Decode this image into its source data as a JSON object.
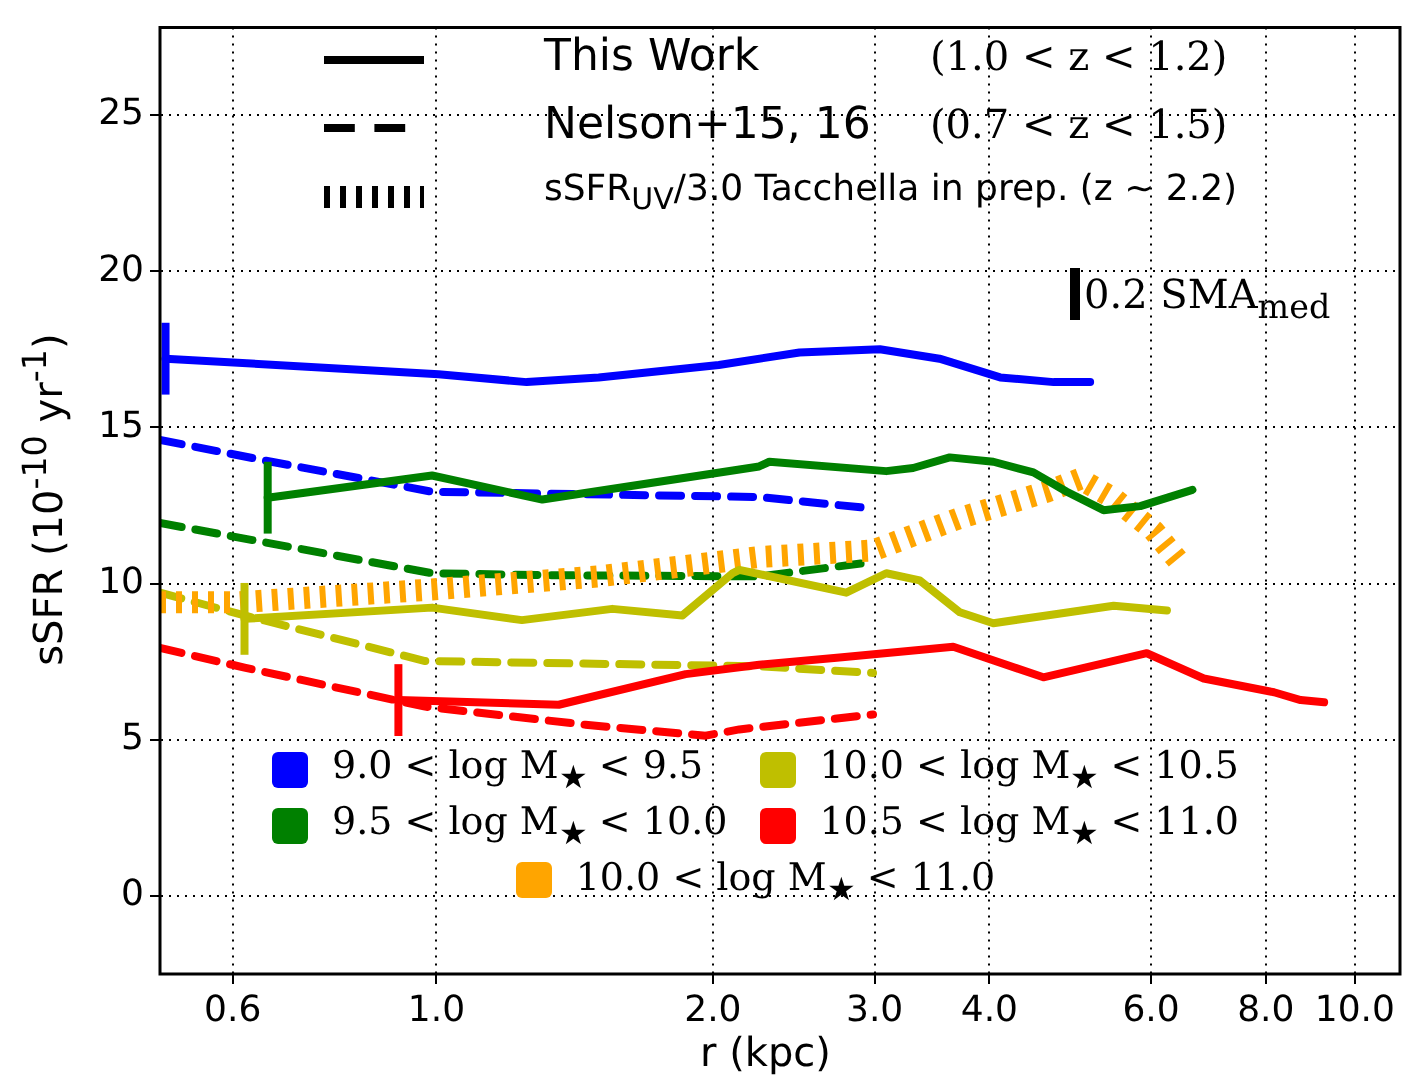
{
  "chart_data": {
    "type": "line",
    "xlabel": "r (kpc)",
    "ylabel": "sSFR (10$^{-10}$ yr$^{-1}$)",
    "log": "x",
    "grid": true,
    "legend": "bottom",
    "xlim": [
      0.5,
      11.2
    ],
    "ylim": [
      -2.5,
      27.8
    ],
    "xticks": [
      0.6,
      {
        "value": 1,
        "label": "1.0"
      },
      {
        "value": 2,
        "label": "2.0"
      },
      {
        "value": 3,
        "label": "3.0"
      },
      {
        "value": 4,
        "label": "4.0"
      },
      {
        "value": 6,
        "label": "6.0"
      },
      {
        "value": 8,
        "label": "8.0"
      },
      {
        "value": 10,
        "label": "10.0"
      }
    ],
    "yticks": [
      0,
      5,
      10,
      15,
      20,
      25
    ],
    "annotations": [
      "This Work",
      "(1.0 < z < 1.2)",
      "Nelson+15, 16",
      "(0.7 < z < 1.5)",
      "sSFR$_{UV}$/3.0 Tacchella in prep. (z ∼ 2.2)",
      "0.2 SMA$_{med}$"
    ],
    "series": [
      {
        "name": "9.0 < log M$_{★}$ < 9.5",
        "color": "#0000ff",
        "line_style": "solid",
        "x": [
          0.507,
          1.005,
          1.254,
          1.502,
          2.03,
          2.485,
          3.04,
          3.53,
          4.11,
          4.7,
          5.15
        ],
        "values": [
          17.2,
          16.7,
          16.45,
          16.6,
          17.0,
          17.4,
          17.5,
          17.2,
          16.6,
          16.45,
          16.45
        ],
        "errors": [
          1.15,
          null,
          null,
          null,
          null,
          null,
          null,
          null,
          null,
          null,
          null
        ]
      },
      {
        "name": "9.5 < log M$_{★}$ < 10.0",
        "color": "#008000",
        "line_style": "solid",
        "x": [
          0.655,
          0.989,
          1.304,
          2.246,
          2.304,
          3.089,
          3.304,
          3.622,
          4.04,
          4.467,
          4.857,
          5.326,
          5.84,
          6.656
        ],
        "values": [
          12.75,
          13.46,
          12.69,
          13.75,
          13.9,
          13.6,
          13.7,
          14.04,
          13.9,
          13.56,
          12.94,
          12.35,
          12.48,
          13.0
        ],
        "errors": [
          1.15,
          null,
          null,
          null,
          null,
          null,
          null,
          null,
          null,
          null,
          null,
          null,
          null,
          null
        ]
      },
      {
        "name": "10.0 < log M$_{★}$ < 10.5",
        "color": "#bfbf00",
        "line_style": "solid",
        "x": [
          0.618,
          0.989,
          1.239,
          1.554,
          1.853,
          2.101,
          2.137,
          2.794,
          3.089,
          3.359,
          3.715,
          4.04,
          4.617,
          5.462,
          6.244
        ],
        "values": [
          8.87,
          9.23,
          8.83,
          9.19,
          8.98,
          10.33,
          10.44,
          9.71,
          10.33,
          10.1,
          9.08,
          8.73,
          8.98,
          9.29,
          9.14
        ],
        "errors": [
          1.15,
          null,
          null,
          null,
          null,
          null,
          null,
          null,
          null,
          null,
          null,
          null,
          null,
          null,
          null
        ]
      },
      {
        "name": "10.5 < log M$_{★}$ < 11.0",
        "color": "#ff0000",
        "line_style": "solid",
        "x": [
          0.909,
          1.359,
          1.868,
          2.246,
          2.747,
          3.654,
          4.58,
          5.937,
          6.847,
          8.166,
          8.73,
          9.26
        ],
        "values": [
          6.27,
          6.12,
          7.1,
          7.4,
          7.63,
          7.98,
          7.0,
          7.77,
          6.96,
          6.52,
          6.27,
          6.2
        ],
        "errors": [
          1.15,
          null,
          null,
          null,
          null,
          null,
          null,
          null,
          null,
          null,
          null,
          null
        ]
      },
      {
        "color": "#0000ff",
        "line_style": "dashed",
        "x": [
          0.5,
          0.661,
          0.989,
          2.246,
          2.988
        ],
        "values": [
          14.6,
          13.9,
          12.94,
          12.77,
          12.4
        ]
      },
      {
        "name": "10.0 < log M$_{★}$ < 11.0",
        "color": "#ffa500",
        "line_style": "dotted",
        "x": [
          0.5,
          0.608,
          0.989,
          1.502,
          2.246,
          2.988,
          3.715,
          4.617,
          5.02,
          5.462,
          6.04,
          6.457
        ],
        "values": [
          9.4,
          9.4,
          9.81,
          10.23,
          10.85,
          11.06,
          12.1,
          12.94,
          13.35,
          12.73,
          11.69,
          10.65
        ]
      },
      {
        "color": "#008000",
        "line_style": "dashed",
        "x": [
          0.5,
          0.989,
          1.312,
          2.246,
          2.988
        ],
        "values": [
          11.94,
          10.33,
          10.27,
          10.23,
          10.69
        ]
      },
      {
        "color": "#bfbf00",
        "line_style": "dashed",
        "x": [
          0.5,
          0.618,
          0.972,
          2.246,
          2.988
        ],
        "values": [
          9.71,
          8.98,
          7.52,
          7.35,
          7.14
        ]
      },
      {
        "color": "#ff0000",
        "line_style": "dashed",
        "x": [
          0.5,
          0.618,
          0.972,
          1.453,
          1.964,
          2.137,
          2.988
        ],
        "values": [
          7.94,
          7.31,
          6.06,
          5.48,
          5.13,
          5.33,
          5.81
        ]
      }
    ]
  }
}
